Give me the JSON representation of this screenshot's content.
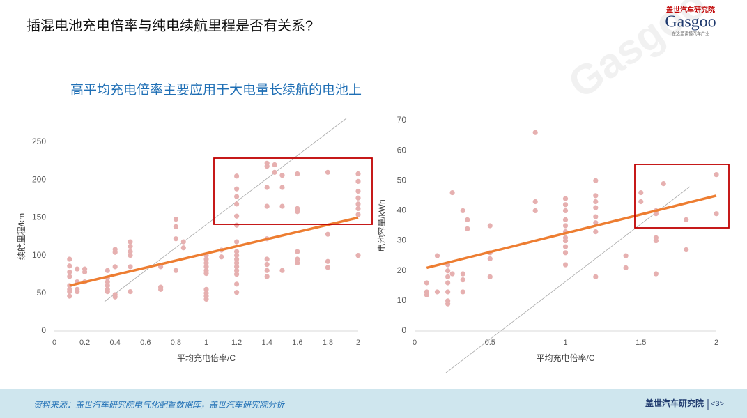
{
  "header": {
    "title": "插混电池充电倍率与纯电续航里程是否有关系?",
    "logo_cn": "盖世汽车研究院",
    "logo_en": "Gasgoo",
    "logo_slogan": "在这里读懂汽车产业"
  },
  "subtitle": "高平均充电倍率主要应用于大电量长续航的电池上",
  "footer": {
    "source": "资料来源：盖世汽车研究院电气化配置数据库，盖世汽车研究院分析",
    "org": "盖世汽车研究院",
    "page": "<3>"
  },
  "chart_data": [
    {
      "type": "scatter",
      "xlabel": "平均充电倍率/C",
      "ylabel": "续航里程/km",
      "color": "#e6b0b0",
      "x": [
        0.1,
        0.1,
        0.1,
        0.1,
        0.1,
        0.1,
        0.1,
        0.1,
        0.15,
        0.15,
        0.15,
        0.15,
        0.2,
        0.2,
        0.2,
        0.35,
        0.35,
        0.35,
        0.35,
        0.35,
        0.35,
        0.4,
        0.4,
        0.4,
        0.4,
        0.4,
        0.5,
        0.5,
        0.5,
        0.5,
        0.5,
        0.5,
        0.7,
        0.7,
        0.7,
        0.8,
        0.8,
        0.8,
        0.8,
        0.85,
        0.85,
        1,
        1,
        1,
        1,
        1,
        1,
        1,
        1,
        1,
        1,
        1.1,
        1.1,
        1.2,
        1.2,
        1.2,
        1.2,
        1.2,
        1.2,
        1.2,
        1.2,
        1.2,
        1.2,
        1.2,
        1.2,
        1.2,
        1.2,
        1.2,
        1.2,
        1.4,
        1.4,
        1.4,
        1.4,
        1.4,
        1.4,
        1.4,
        1.4,
        1.4,
        1.45,
        1.45,
        1.5,
        1.5,
        1.5,
        1.5,
        1.6,
        1.6,
        1.6,
        1.6,
        1.6,
        1.6,
        1.8,
        1.8,
        1.8,
        1.8,
        2,
        2,
        2,
        2,
        2,
        2,
        2,
        2
      ],
      "y": [
        95,
        86,
        78,
        72,
        60,
        55,
        52,
        46,
        82,
        65,
        55,
        52,
        82,
        78,
        65,
        80,
        70,
        65,
        60,
        55,
        52,
        108,
        104,
        85,
        48,
        45,
        118,
        112,
        105,
        100,
        85,
        52,
        85,
        58,
        55,
        148,
        138,
        122,
        80,
        118,
        110,
        100,
        95,
        90,
        85,
        80,
        76,
        55,
        50,
        46,
        42,
        107,
        98,
        205,
        188,
        178,
        168,
        152,
        140,
        118,
        105,
        100,
        95,
        90,
        85,
        80,
        75,
        62,
        51,
        222,
        218,
        190,
        165,
        122,
        95,
        88,
        80,
        72,
        220,
        210,
        206,
        190,
        165,
        80,
        208,
        162,
        158,
        105,
        95,
        90,
        210,
        128,
        92,
        84,
        208,
        198,
        185,
        176,
        168,
        162,
        154,
        100
      ],
      "trendline": {
        "x": [
          0.1,
          2
        ],
        "y": [
          60,
          150
        ],
        "color": "#ed7d31"
      },
      "xlim": [
        0,
        2
      ],
      "ylim": [
        0,
        250
      ],
      "xticks": [
        0,
        0.2,
        0.4,
        0.6,
        0.8,
        1,
        1.2,
        1.4,
        1.6,
        1.8,
        2
      ],
      "yticks": [
        0,
        50,
        100,
        150,
        200,
        250
      ]
    },
    {
      "type": "scatter",
      "xlabel": "平均充电倍率/C",
      "ylabel": "电池容量/kWh",
      "color": "#e6b0b0",
      "x": [
        0.08,
        0.08,
        0.08,
        0.15,
        0.15,
        0.22,
        0.22,
        0.22,
        0.22,
        0.22,
        0.22,
        0.22,
        0.25,
        0.25,
        0.32,
        0.32,
        0.32,
        0.32,
        0.35,
        0.35,
        0.5,
        0.5,
        0.5,
        0.5,
        0.8,
        0.8,
        0.8,
        1,
        1,
        1,
        1,
        1,
        1,
        1,
        1,
        1,
        1,
        1,
        1.2,
        1.2,
        1.2,
        1.2,
        1.2,
        1.2,
        1.2,
        1.2,
        1.4,
        1.4,
        1.5,
        1.5,
        1.6,
        1.6,
        1.6,
        1.6,
        1.6,
        1.65,
        1.8,
        1.8,
        2,
        2
      ],
      "y": [
        16,
        13,
        12,
        25,
        13,
        22,
        20,
        18,
        16,
        13,
        10,
        9,
        46,
        19,
        40,
        19,
        17,
        13,
        37,
        34,
        35,
        26,
        24,
        18,
        66,
        43,
        40,
        44,
        42,
        40,
        37,
        35,
        33,
        31,
        30,
        28,
        26,
        22,
        50,
        45,
        43,
        41,
        38,
        36,
        33,
        18,
        25,
        21,
        46,
        43,
        40,
        39,
        31,
        30,
        19,
        49,
        37,
        27,
        52,
        39
      ],
      "trendline": {
        "x": [
          0.08,
          2
        ],
        "y": [
          21,
          45
        ],
        "color": "#ed7d31"
      },
      "xlim": [
        0,
        2
      ],
      "ylim": [
        0,
        70
      ],
      "xticks": [
        0,
        0.5,
        1,
        1.5,
        2
      ],
      "yticks": [
        0,
        10,
        20,
        30,
        40,
        50,
        60,
        70
      ]
    }
  ]
}
